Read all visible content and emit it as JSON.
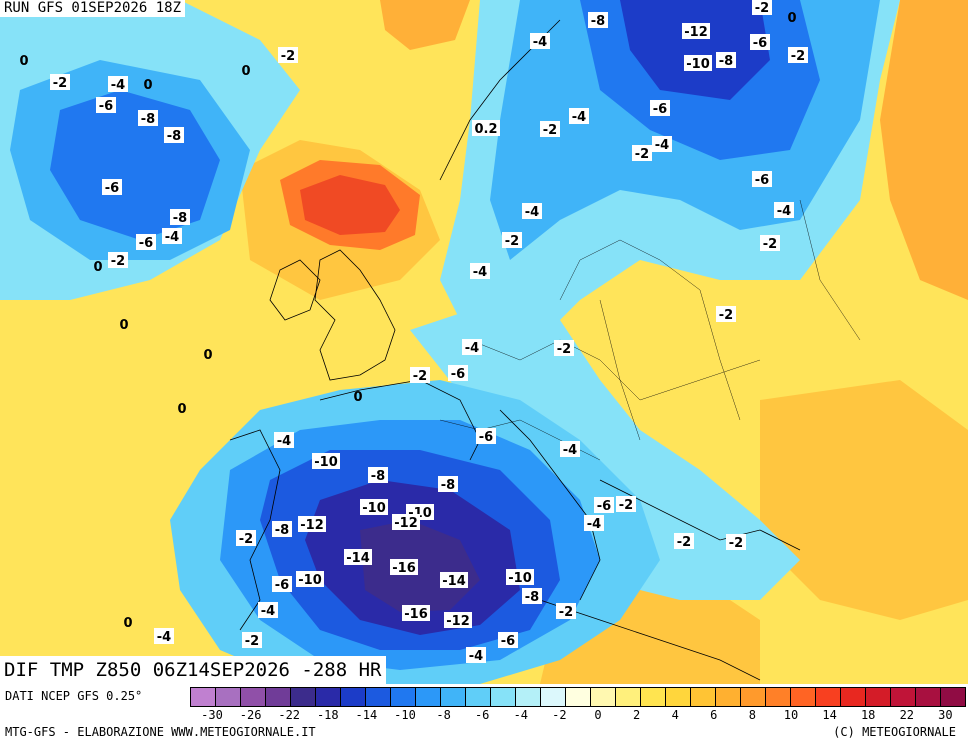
{
  "header": {
    "run_title": "RUN GFS 01SEP2026 18Z",
    "map_title": "DIF TMP Z850 06Z14SEP2026 -288 HR"
  },
  "footer": {
    "data_source": "DATI NCEP GFS 0.25°",
    "credits_left": "MTG-GFS - ELABORAZIONE WWW.METEOGIORNALE.IT",
    "credits_right": "(C) METEOGIORNALE"
  },
  "legend": {
    "ticks": [
      "-30",
      "-26",
      "-22",
      "-18",
      "-14",
      "-10",
      "-8",
      "-6",
      "-4",
      "-2",
      "0",
      "2",
      "4",
      "6",
      "8",
      "10",
      "14",
      "18",
      "22",
      "30"
    ],
    "colors": [
      "#c080d0",
      "#a870c0",
      "#9050a8",
      "#703c98",
      "#3c2c8c",
      "#2a2aa8",
      "#1c3cc8",
      "#1c5ae0",
      "#2078f0",
      "#2c98f8",
      "#40b4f8",
      "#60cef8",
      "#86e2f8",
      "#b4f0f8",
      "#dcf8fc",
      "#ffffe0",
      "#fff8b0",
      "#fff07c",
      "#ffe450",
      "#ffd63c",
      "#ffc434",
      "#ffb030",
      "#ff9a2c",
      "#ff8028",
      "#ff6424",
      "#f84020",
      "#e82820",
      "#d41c28",
      "#c01438",
      "#a81040",
      "#900c44"
    ]
  },
  "contour_labels": [
    {
      "text": "0",
      "bg": false
    },
    {
      "text": "-2",
      "bg": true
    },
    {
      "text": "-4",
      "bg": true
    },
    {
      "text": "0",
      "bg": false
    },
    {
      "text": "0",
      "bg": false
    },
    {
      "text": "-2",
      "bg": true
    },
    {
      "text": "-6",
      "bg": true
    },
    {
      "text": "-8",
      "bg": true
    },
    {
      "text": "-8",
      "bg": true
    },
    {
      "text": "-6",
      "bg": true
    },
    {
      "text": "-8",
      "bg": true
    },
    {
      "text": "-6",
      "bg": true
    },
    {
      "text": "-4",
      "bg": true
    },
    {
      "text": "0",
      "bg": false
    },
    {
      "text": "-2",
      "bg": true
    },
    {
      "text": "0",
      "bg": false
    },
    {
      "text": "0",
      "bg": false
    },
    {
      "text": "0",
      "bg": false
    },
    {
      "text": "0",
      "bg": false
    },
    {
      "text": "-4",
      "bg": true
    },
    {
      "text": "-10",
      "bg": true
    },
    {
      "text": "-8",
      "bg": true
    },
    {
      "text": "-8",
      "bg": true
    },
    {
      "text": "-10",
      "bg": true
    },
    {
      "text": "-10",
      "bg": true
    },
    {
      "text": "-12",
      "bg": true
    },
    {
      "text": "-8",
      "bg": true
    },
    {
      "text": "-12",
      "bg": true
    },
    {
      "text": "-14",
      "bg": true
    },
    {
      "text": "-16",
      "bg": true
    },
    {
      "text": "-14",
      "bg": true
    },
    {
      "text": "-10",
      "bg": true
    },
    {
      "text": "-6",
      "bg": true
    },
    {
      "text": "-10",
      "bg": true
    },
    {
      "text": "-8",
      "bg": true
    },
    {
      "text": "-16",
      "bg": true
    },
    {
      "text": "-12",
      "bg": true
    },
    {
      "text": "-4",
      "bg": true
    },
    {
      "text": "-2",
      "bg": true
    },
    {
      "text": "-6",
      "bg": true
    },
    {
      "text": "-4",
      "bg": true
    },
    {
      "text": "-2",
      "bg": true
    },
    {
      "text": "0",
      "bg": false
    },
    {
      "text": "-2",
      "bg": true
    },
    {
      "text": "-4",
      "bg": true
    },
    {
      "text": "-6",
      "bg": true
    },
    {
      "text": "-2",
      "bg": true
    },
    {
      "text": "-4",
      "bg": true
    },
    {
      "text": "-6",
      "bg": true
    },
    {
      "text": "-4",
      "bg": true
    },
    {
      "text": "-2",
      "bg": true
    },
    {
      "text": "-6",
      "bg": true
    },
    {
      "text": "-2",
      "bg": true
    },
    {
      "text": "-4",
      "bg": true
    },
    {
      "text": "-2",
      "bg": true
    },
    {
      "text": "-2",
      "bg": true
    },
    {
      "text": "-2",
      "bg": true
    },
    {
      "text": "-2",
      "bg": true
    },
    {
      "text": "-8",
      "bg": true
    },
    {
      "text": "-4",
      "bg": true
    },
    {
      "text": "-12",
      "bg": true
    },
    {
      "text": "-6",
      "bg": true
    },
    {
      "text": "-10",
      "bg": true
    },
    {
      "text": "-8",
      "bg": true
    },
    {
      "text": "-2",
      "bg": true
    },
    {
      "text": "-6",
      "bg": true
    },
    {
      "text": "-4",
      "bg": true
    },
    {
      "text": "-2",
      "bg": true
    },
    {
      "text": "-4",
      "bg": true
    },
    {
      "text": "-4",
      "bg": true
    },
    {
      "text": "-6",
      "bg": true
    },
    {
      "text": "-4",
      "bg": true
    },
    {
      "text": "-2",
      "bg": true
    },
    {
      "text": "-2",
      "bg": true
    },
    {
      "text": "-4",
      "bg": true
    },
    {
      "text": "-2",
      "bg": true
    },
    {
      "text": "0",
      "bg": false
    },
    {
      "text": "-2",
      "bg": true
    },
    {
      "text": "-2",
      "bg": true
    },
    {
      "text": "0.2",
      "bg": true
    }
  ]
}
